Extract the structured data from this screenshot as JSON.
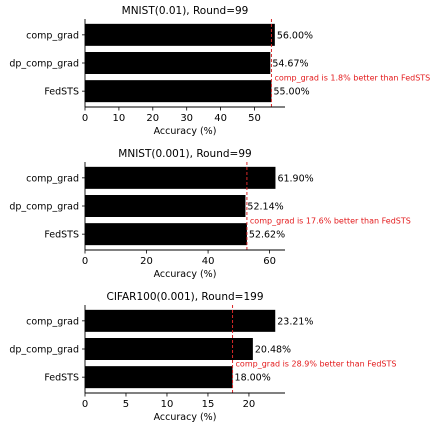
{
  "chart_data": [
    {
      "type": "bar",
      "orientation": "horizontal",
      "title": "MNIST(0.01), Round=99",
      "xlabel": "Accuracy (%)",
      "ylabel": "",
      "categories": [
        "comp_grad",
        "dp_comp_grad",
        "FedSTS"
      ],
      "values": [
        56.0,
        54.67,
        55.0
      ],
      "value_labels": [
        "56.00%",
        "54.67%",
        "55.00%"
      ],
      "xlim": [
        0,
        59
      ],
      "xticks": [
        0,
        10,
        20,
        30,
        40,
        50
      ],
      "reference_line": 55.0,
      "annotation": "comp_grad is 1.8% better than FedSTS",
      "colors": {
        "bar": "#000000",
        "reference": "#d62728",
        "annotation": "#e31a1c"
      }
    },
    {
      "type": "bar",
      "orientation": "horizontal",
      "title": "MNIST(0.001), Round=99",
      "xlabel": "Accuracy (%)",
      "ylabel": "",
      "categories": [
        "comp_grad",
        "dp_comp_grad",
        "FedSTS"
      ],
      "values": [
        61.9,
        52.14,
        52.62
      ],
      "value_labels": [
        "61.90%",
        "52.14%",
        "52.62%"
      ],
      "xlim": [
        0,
        65
      ],
      "xticks": [
        0,
        20,
        40,
        60
      ],
      "reference_line": 52.62,
      "annotation": "comp_grad is 17.6% better than FedSTS",
      "colors": {
        "bar": "#000000",
        "reference": "#d62728",
        "annotation": "#e31a1c"
      }
    },
    {
      "type": "bar",
      "orientation": "horizontal",
      "title": "CIFAR100(0.001), Round=199",
      "xlabel": "Accuracy (%)",
      "ylabel": "",
      "categories": [
        "comp_grad",
        "dp_comp_grad",
        "FedSTS"
      ],
      "values": [
        23.21,
        20.48,
        18.0
      ],
      "value_labels": [
        "23.21%",
        "20.48%",
        "18.00%"
      ],
      "xlim": [
        0,
        24.4
      ],
      "xticks": [
        0,
        5,
        10,
        15,
        20
      ],
      "reference_line": 18.0,
      "annotation": "comp_grad is 28.9% better than FedSTS",
      "colors": {
        "bar": "#000000",
        "reference": "#d62728",
        "annotation": "#e31a1c"
      }
    }
  ]
}
